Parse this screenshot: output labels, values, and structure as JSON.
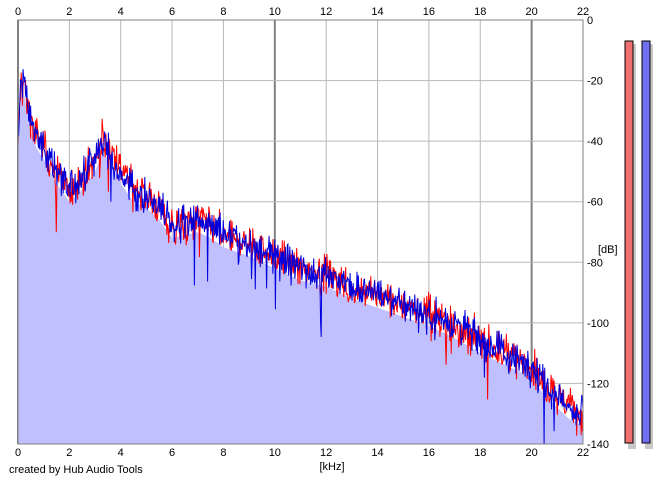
{
  "chart_data": {
    "type": "area",
    "title": "",
    "xlabel": "[kHz]",
    "ylabel": "[dB]",
    "xlim": [
      0,
      22
    ],
    "ylim": [
      -140,
      0
    ],
    "x_ticks": [
      "0",
      "2",
      "4",
      "6",
      "8",
      "10",
      "12",
      "14",
      "16",
      "18",
      "20",
      "22"
    ],
    "y_ticks": [
      "0",
      "-20",
      "-40",
      "-60",
      "-80",
      "-100",
      "-120",
      "-140"
    ],
    "grid": true,
    "envelope": {
      "x": [
        0,
        0.1,
        0.2,
        0.4,
        0.7,
        1.0,
        1.5,
        2.0,
        2.5,
        3.0,
        3.3,
        3.6,
        4.0,
        4.5,
        5.0,
        5.5,
        6.0,
        6.5,
        7.0,
        7.5,
        8.0,
        9.0,
        10.0,
        11.0,
        12.0,
        13.0,
        14.0,
        15.0,
        16.0,
        17.0,
        18.0,
        19.0,
        20.0,
        20.5,
        21.0,
        21.5,
        22.0
      ],
      "y": [
        -42,
        -22,
        -18,
        -30,
        -38,
        -42,
        -50,
        -56,
        -52,
        -46,
        -40,
        -43,
        -50,
        -56,
        -58,
        -62,
        -68,
        -67,
        -66,
        -68,
        -71,
        -74,
        -78,
        -82,
        -84,
        -88,
        -91,
        -94,
        -97,
        -101,
        -106,
        -110,
        -114,
        -120,
        -124,
        -128,
        -130
      ]
    },
    "series": [
      {
        "name": "",
        "color": "#ff0000"
      },
      {
        "name": "",
        "color": "#0000dd"
      }
    ],
    "fill_color": "#c0c0ff",
    "level_meters": [
      {
        "color": "#f07070",
        "level": 1.0
      },
      {
        "color": "#7070f0",
        "level": 1.0
      }
    ]
  },
  "credit": "created by Hub Audio Tools"
}
